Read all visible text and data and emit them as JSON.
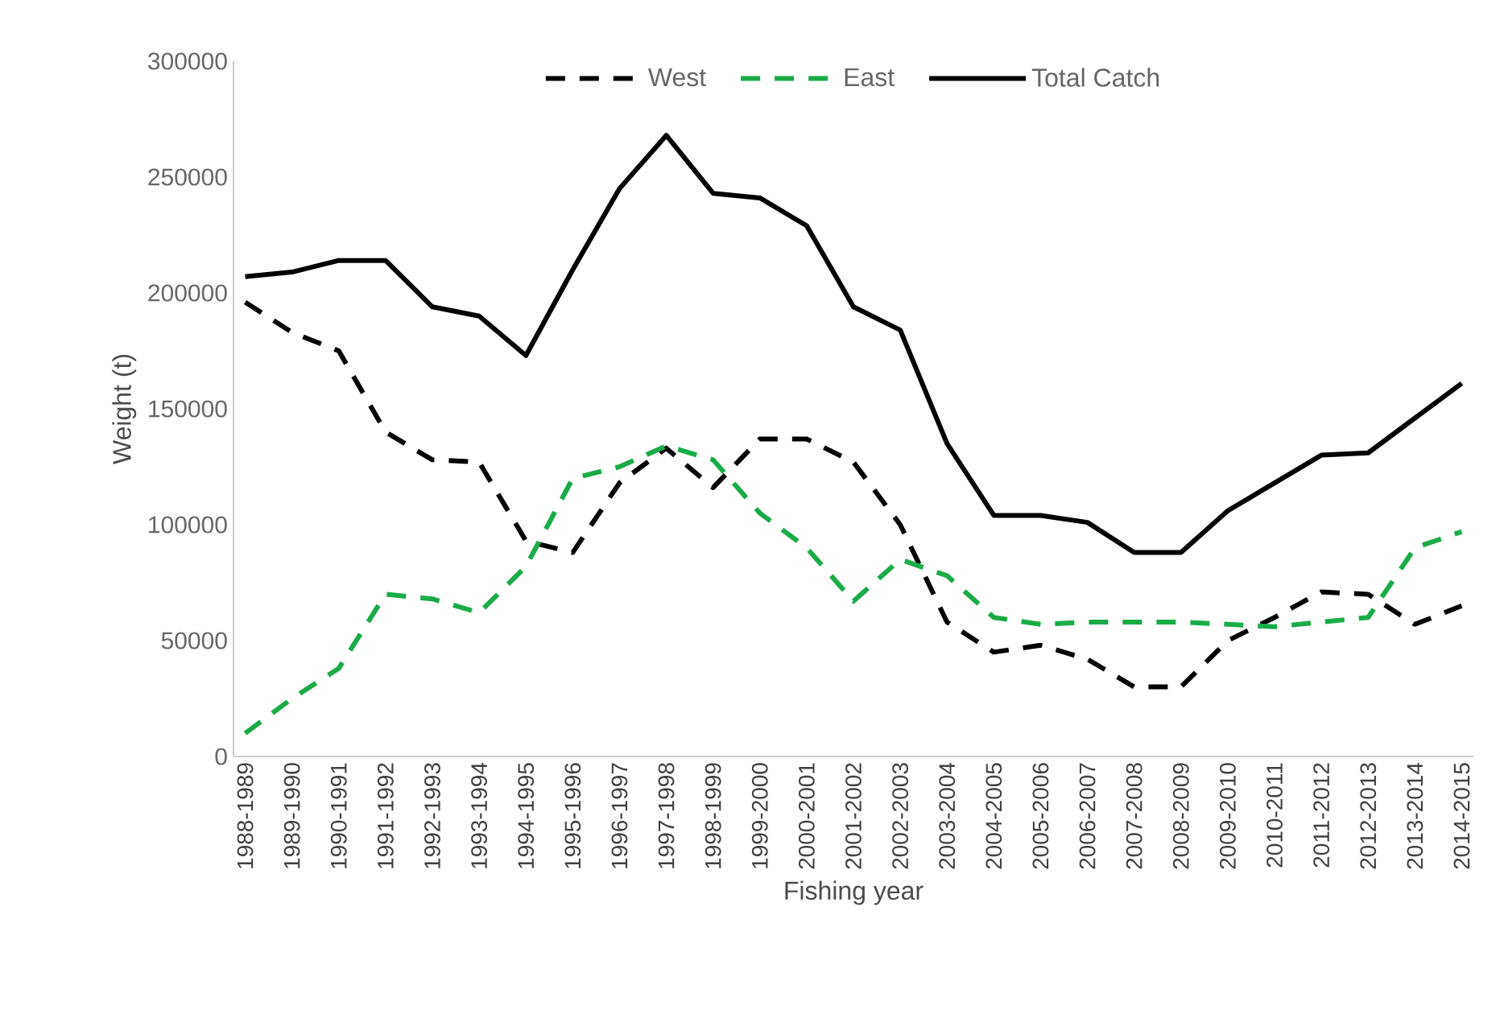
{
  "chart_data": {
    "type": "line",
    "xlabel": "Fishing year",
    "ylabel": "Weight (t)",
    "categories": [
      "1988-1989",
      "1989-1990",
      "1990-1991",
      "1991-1992",
      "1992-1993",
      "1993-1994",
      "1994-1995",
      "1995-1996",
      "1996-1997",
      "1997-1998",
      "1998-1999",
      "1999-2000",
      "2000-2001",
      "2001-2002",
      "2002-2003",
      "2003-2004",
      "2004-2005",
      "2005-2006",
      "2006-2007",
      "2007-2008",
      "2008-2009",
      "2009-2010",
      "2010-2011",
      "2011-2012",
      "2012-2013",
      "2013-2014",
      "2014-2015"
    ],
    "series": [
      {
        "name": "West",
        "color": "#000000",
        "line_style": "dashed",
        "values": [
          196000,
          183000,
          175000,
          140000,
          128000,
          127000,
          93000,
          88000,
          118000,
          133000,
          116000,
          137000,
          137000,
          127000,
          100000,
          58000,
          45000,
          48000,
          42000,
          30000,
          30000,
          50000,
          60000,
          71000,
          70000,
          57000,
          65000
        ]
      },
      {
        "name": "East",
        "color": "#1aab48",
        "line_style": "dashed",
        "values": [
          10000,
          25000,
          38000,
          70000,
          68000,
          62000,
          82000,
          120000,
          125000,
          134000,
          128000,
          105000,
          90000,
          67000,
          85000,
          78000,
          60000,
          57000,
          58000,
          58000,
          58000,
          57000,
          56000,
          58000,
          60000,
          90000,
          97000
        ]
      },
      {
        "name": "Total Catch",
        "color": "#000000",
        "line_style": "solid",
        "values": [
          207000,
          209000,
          214000,
          214000,
          194000,
          190000,
          173000,
          210000,
          245000,
          268000,
          243000,
          241000,
          229000,
          194000,
          184000,
          135000,
          104000,
          104000,
          101000,
          88000,
          88000,
          106000,
          118000,
          130000,
          131000,
          146000,
          161000
        ]
      }
    ],
    "ylim": [
      0,
      300000
    ],
    "yticks": [
      0,
      50000,
      100000,
      150000,
      200000,
      250000,
      300000
    ],
    "legend": "top",
    "marker": "none",
    "grid": false
  }
}
